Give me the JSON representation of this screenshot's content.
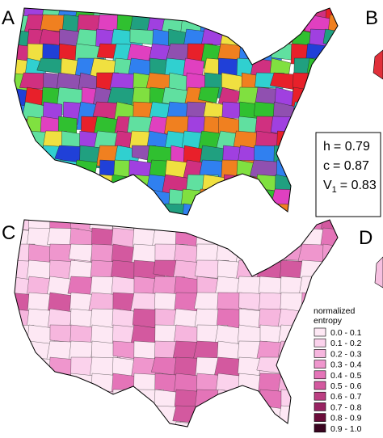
{
  "panels": [
    {
      "label": "A"
    },
    {
      "label": "B"
    },
    {
      "label": "C"
    },
    {
      "label": "D"
    }
  ],
  "stats": [
    {
      "symbol": "h",
      "value_text": "= 0.79"
    },
    {
      "symbol": "c",
      "value_text": "= 0.87"
    },
    {
      "symbol": "V",
      "subscript": "1",
      "value_text": "= 0.83"
    }
  ],
  "legend": {
    "title_lines": [
      "normalized",
      "entropy"
    ],
    "items": [
      {
        "label": "0.0 - 0.1",
        "color": "#fde8f4"
      },
      {
        "label": "0.1 - 0.2",
        "color": "#fbd2ec"
      },
      {
        "label": "0.2 - 0.3",
        "color": "#f6b6de"
      },
      {
        "label": "0.3 - 0.4",
        "color": "#ef96cd"
      },
      {
        "label": "0.4 - 0.5",
        "color": "#e474b8"
      },
      {
        "label": "0.5 - 0.6",
        "color": "#d3599f"
      },
      {
        "label": "0.6 - 0.7",
        "color": "#bb3f82"
      },
      {
        "label": "0.7 - 0.8",
        "color": "#982362"
      },
      {
        "label": "0.8 - 0.9",
        "color": "#6b0c3a"
      },
      {
        "label": "0.9 - 1.0",
        "color": "#3a0520"
      }
    ]
  }
}
